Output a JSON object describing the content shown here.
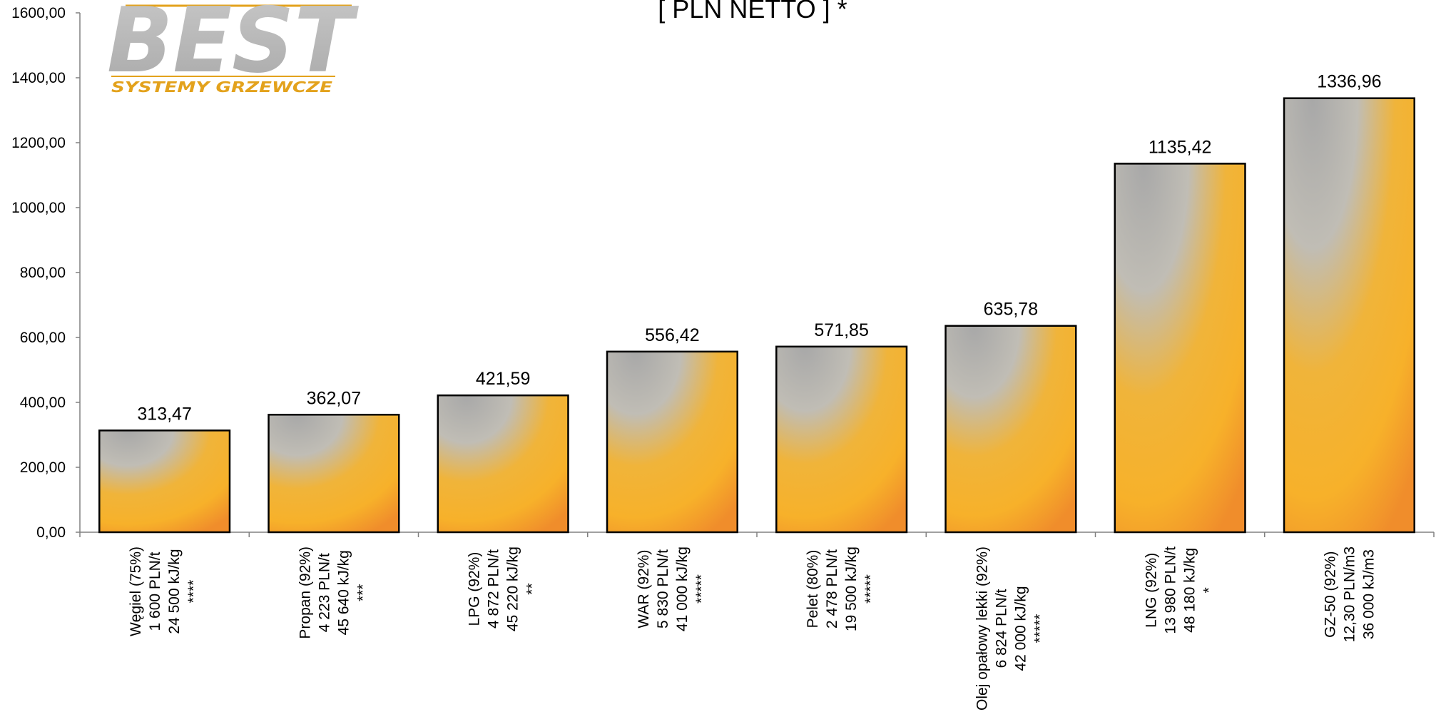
{
  "title": "[ PLN NETTO ] *",
  "logo": {
    "word": "BEST",
    "tagline": "SYSTEMY GRZEWCZE"
  },
  "colors": {
    "bar_top": "#a9a9a9",
    "bar_mid": "#c2bdb3",
    "bar_orange": "#f6b22c",
    "bar_bottom": "#f0922c",
    "bar_border": "#000000",
    "logo_gray": "#b9b9b9",
    "logo_gold": "#e3a21c",
    "axis": "#808080"
  },
  "chart_data": {
    "type": "bar",
    "title": "[ PLN NETTO ] *",
    "ylim": [
      0,
      1600
    ],
    "yticks": [
      0,
      200,
      400,
      600,
      800,
      1000,
      1200,
      1400,
      1600
    ],
    "ytick_labels": [
      "0,00",
      "200,00",
      "400,00",
      "600,00",
      "800,00",
      "1000,00",
      "1200,00",
      "1400,00",
      "1600,00"
    ],
    "grid": false,
    "categories": [
      [
        "Węgiel (75%)",
        "1 600 PLN/t",
        "24 500 kJ/kg",
        "****"
      ],
      [
        "Propan (92%)",
        "4 223 PLN/t",
        "45 640 kJ/kg",
        "***"
      ],
      [
        "LPG (92%)",
        "4 872 PLN/t",
        "45 220 kJ/kg",
        "**"
      ],
      [
        "WAR (92%)",
        "5 830 PLN/t",
        "41 000 kJ/kg",
        "*****"
      ],
      [
        "Pelet (80%)",
        "2 478 PLN/t",
        "19 500 kJ/kg",
        "*****"
      ],
      [
        "Olej opałowy lekki (92%)",
        "6 824 PLN/t",
        "42 000 kJ/kg",
        "*****"
      ],
      [
        "LNG (92%)",
        "13 980 PLN/t",
        "48 180 kJ/kg",
        "*"
      ],
      [
        "GZ-50 (92%)",
        "12,30 PLN/m3",
        "36 000 kJ/m3"
      ]
    ],
    "values": [
      313.47,
      362.07,
      421.59,
      556.42,
      571.85,
      635.78,
      1135.42,
      1336.96
    ],
    "value_labels": [
      "313,47",
      "362,07",
      "421,59",
      "556,42",
      "571,85",
      "635,78",
      "1135,42",
      "1336,96"
    ]
  }
}
